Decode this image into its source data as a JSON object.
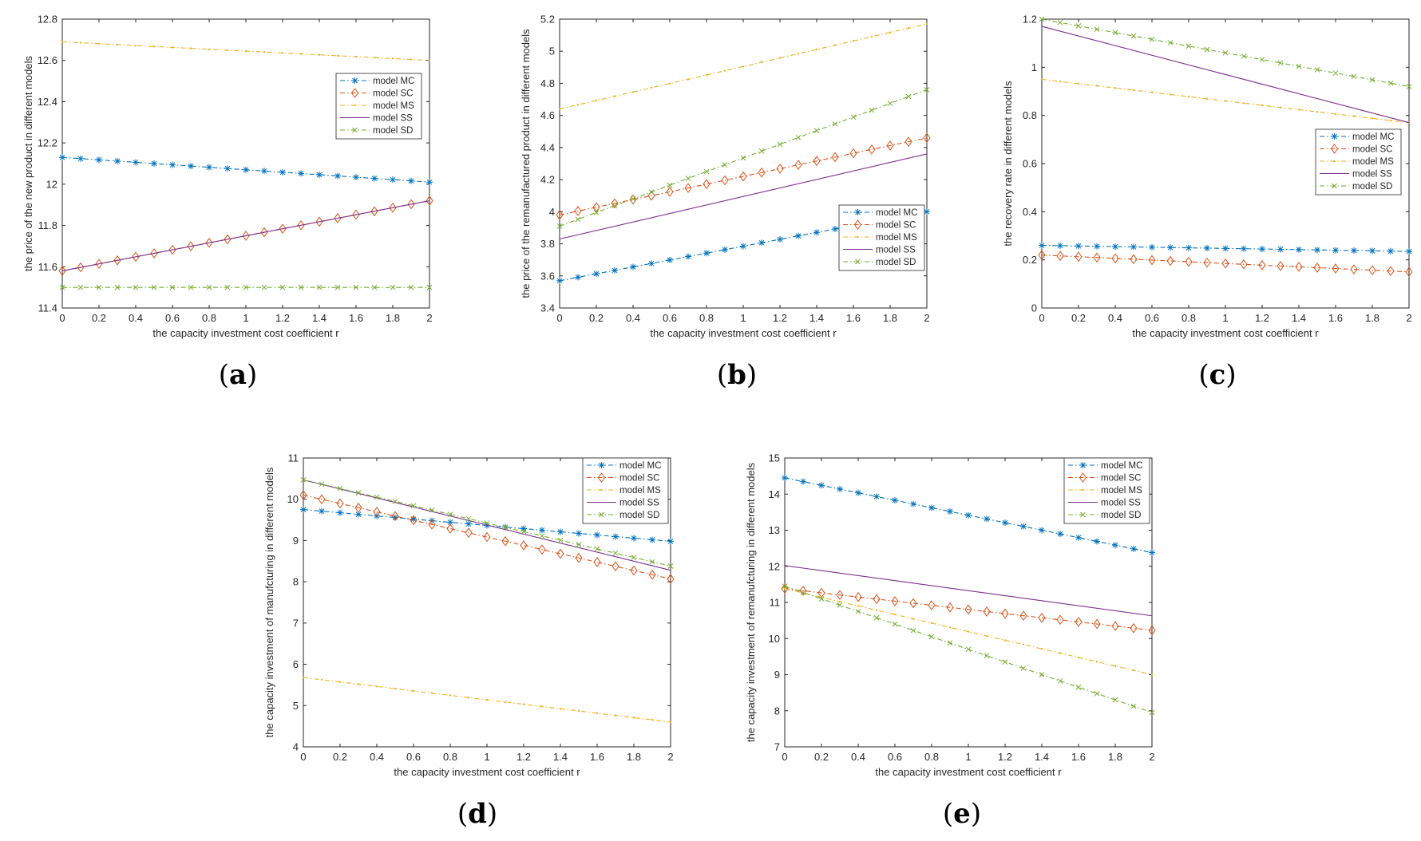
{
  "chart_data": [
    {
      "type": "line",
      "caption_letter": "a",
      "xlabel": "the capacity investment cost coefficient r",
      "ylabel": "the price of the new product in different models",
      "xlim": [
        0,
        2
      ],
      "ylim": [
        11.4,
        12.8
      ],
      "xticks": [
        0,
        0.2,
        0.4,
        0.6,
        0.8,
        1,
        1.2,
        1.4,
        1.6,
        1.8,
        2
      ],
      "xtick_labels": [
        "0",
        "0.2",
        "0.4",
        "0.6",
        "0.8",
        "1",
        "1.2",
        "1.4",
        "1.6",
        "1.8",
        "2"
      ],
      "yticks": [
        11.4,
        11.6,
        11.8,
        12,
        12.2,
        12.4,
        12.6,
        12.8
      ],
      "ytick_labels": [
        "11.4",
        "11.6",
        "11.8",
        "12",
        "12.2",
        "12.4",
        "12.6",
        "12.8"
      ],
      "legend": "inner-top-right",
      "series": [
        {
          "name": "model MC",
          "start": 12.13,
          "end": 12.01,
          "color": "#0072BD",
          "dash": "dashdot",
          "marker": "star"
        },
        {
          "name": "model SC",
          "start": 11.58,
          "end": 11.92,
          "color": "#D95319",
          "dash": "dashdot",
          "marker": "diamond"
        },
        {
          "name": "model MS",
          "start": 12.69,
          "end": 12.6,
          "color": "#EDB120",
          "dash": "dashdot",
          "marker": "dot"
        },
        {
          "name": "model SS",
          "start": 11.58,
          "end": 11.92,
          "color": "#7E2F8E",
          "dash": "solid",
          "marker": "none"
        },
        {
          "name": "model SD",
          "start": 11.5,
          "end": 11.5,
          "color": "#77AC30",
          "dash": "dashdot",
          "marker": "x"
        }
      ]
    },
    {
      "type": "line",
      "caption_letter": "b",
      "xlabel": "the capacity investment cost coefficient r",
      "ylabel": "the price of the remanufactured product in different models",
      "xlim": [
        0,
        2
      ],
      "ylim": [
        3.4,
        5.2
      ],
      "xticks": [
        0,
        0.2,
        0.4,
        0.6,
        0.8,
        1,
        1.2,
        1.4,
        1.6,
        1.8,
        2
      ],
      "xtick_labels": [
        "0",
        "0.2",
        "0.4",
        "0.6",
        "0.8",
        "1",
        "1.2",
        "1.4",
        "1.6",
        "1.8",
        "2"
      ],
      "yticks": [
        3.4,
        3.6,
        3.8,
        4,
        4.2,
        4.4,
        4.6,
        4.8,
        5,
        5.2
      ],
      "ytick_labels": [
        "3.4",
        "3.6",
        "3.8",
        "4",
        "4.2",
        "4.4",
        "4.6",
        "4.8",
        "5",
        "5.2"
      ],
      "legend": "inner-bottom-right",
      "series": [
        {
          "name": "model MC",
          "start": 3.57,
          "end": 4.0,
          "color": "#0072BD",
          "dash": "dashdot",
          "marker": "star"
        },
        {
          "name": "model SC",
          "start": 3.98,
          "end": 4.46,
          "color": "#D95319",
          "dash": "dashdot",
          "marker": "diamond"
        },
        {
          "name": "model MS",
          "start": 4.64,
          "end": 5.17,
          "color": "#EDB120",
          "dash": "dashdot",
          "marker": "dot"
        },
        {
          "name": "model SS",
          "start": 3.83,
          "end": 4.36,
          "color": "#7E2F8E",
          "dash": "solid",
          "marker": "none"
        },
        {
          "name": "model SD",
          "start": 3.91,
          "end": 4.76,
          "color": "#77AC30",
          "dash": "dashdot",
          "marker": "x"
        }
      ]
    },
    {
      "type": "line",
      "caption_letter": "c",
      "xlabel": "the capacity investment cost coefficient r",
      "ylabel": "the recovery rate in different models",
      "xlim": [
        0,
        2
      ],
      "ylim": [
        0,
        1.2
      ],
      "xticks": [
        0,
        0.2,
        0.4,
        0.6,
        0.8,
        1,
        1.2,
        1.4,
        1.6,
        1.8,
        2
      ],
      "xtick_labels": [
        "0",
        "0.2",
        "0.4",
        "0.6",
        "0.8",
        "1",
        "1.2",
        "1.4",
        "1.6",
        "1.8",
        "2"
      ],
      "yticks": [
        0,
        0.2,
        0.4,
        0.6,
        0.8,
        1,
        1.2
      ],
      "ytick_labels": [
        "0",
        "0.2",
        "0.4",
        "0.6",
        "0.8",
        "1",
        "1.2"
      ],
      "legend": "inner-right",
      "series": [
        {
          "name": "model MC",
          "start": 0.26,
          "end": 0.235,
          "color": "#0072BD",
          "dash": "dashdot",
          "marker": "star"
        },
        {
          "name": "model SC",
          "start": 0.22,
          "end": 0.15,
          "color": "#D95319",
          "dash": "dashdot",
          "marker": "diamond"
        },
        {
          "name": "model MS",
          "start": 0.95,
          "end": 0.77,
          "color": "#EDB120",
          "dash": "dashdot",
          "marker": "dot"
        },
        {
          "name": "model SS",
          "start": 1.17,
          "end": 0.77,
          "color": "#7E2F8E",
          "dash": "solid",
          "marker": "none"
        },
        {
          "name": "model SD",
          "start": 1.2,
          "end": 0.92,
          "color": "#77AC30",
          "dash": "dashdot",
          "marker": "x"
        }
      ]
    },
    {
      "type": "line",
      "caption_letter": "d",
      "xlabel": "the capacity investment cost coefficient r",
      "ylabel": "the capacity investment of manufcturing in different models",
      "xlim": [
        0,
        2
      ],
      "ylim": [
        4,
        11
      ],
      "xticks": [
        0,
        0.2,
        0.4,
        0.6,
        0.8,
        1,
        1.2,
        1.4,
        1.6,
        1.8,
        2
      ],
      "xtick_labels": [
        "0",
        "0.2",
        "0.4",
        "0.6",
        "0.8",
        "1",
        "1.2",
        "1.4",
        "1.6",
        "1.8",
        "2"
      ],
      "yticks": [
        4,
        5,
        6,
        7,
        8,
        9,
        10,
        11
      ],
      "ytick_labels": [
        "4",
        "5",
        "6",
        "7",
        "8",
        "9",
        "10",
        "11"
      ],
      "legend": "inner-top-right",
      "series": [
        {
          "name": "model MC",
          "start": 9.75,
          "end": 8.98,
          "color": "#0072BD",
          "dash": "dashdot",
          "marker": "star"
        },
        {
          "name": "model SC",
          "start": 10.1,
          "end": 8.07,
          "color": "#D95319",
          "dash": "dashdot",
          "marker": "diamond"
        },
        {
          "name": "model MS",
          "start": 5.68,
          "end": 4.6,
          "color": "#EDB120",
          "dash": "dashdot",
          "marker": "dot"
        },
        {
          "name": "model SS",
          "start": 10.47,
          "end": 8.28,
          "color": "#7E2F8E",
          "dash": "solid",
          "marker": "none"
        },
        {
          "name": "model SD",
          "start": 10.47,
          "end": 8.38,
          "color": "#77AC30",
          "dash": "dashdot",
          "marker": "x"
        }
      ]
    },
    {
      "type": "line",
      "caption_letter": "e",
      "xlabel": "the capacity investment cost coefficient r",
      "ylabel": "the capacity investment of remanufcturing in different models",
      "xlim": [
        0,
        2
      ],
      "ylim": [
        7,
        15
      ],
      "xticks": [
        0,
        0.2,
        0.4,
        0.6,
        0.8,
        1,
        1.2,
        1.4,
        1.6,
        1.8,
        2
      ],
      "xtick_labels": [
        "0",
        "0.2",
        "0.4",
        "0.6",
        "0.8",
        "1",
        "1.2",
        "1.4",
        "1.6",
        "1.8",
        "2"
      ],
      "yticks": [
        7,
        8,
        9,
        10,
        11,
        12,
        13,
        14,
        15
      ],
      "ytick_labels": [
        "7",
        "8",
        "9",
        "10",
        "11",
        "12",
        "13",
        "14",
        "15"
      ],
      "legend": "inner-top-right",
      "series": [
        {
          "name": "model MC",
          "start": 14.45,
          "end": 12.38,
          "color": "#0072BD",
          "dash": "dashdot",
          "marker": "star"
        },
        {
          "name": "model SC",
          "start": 11.38,
          "end": 10.23,
          "color": "#D95319",
          "dash": "dashdot",
          "marker": "diamond"
        },
        {
          "name": "model MS",
          "start": 11.38,
          "end": 9.0,
          "color": "#EDB120",
          "dash": "dashdot",
          "marker": "dot"
        },
        {
          "name": "model SS",
          "start": 12.02,
          "end": 10.63,
          "color": "#7E2F8E",
          "dash": "solid",
          "marker": "none"
        },
        {
          "name": "model SD",
          "start": 11.45,
          "end": 7.95,
          "color": "#77AC30",
          "dash": "dashdot",
          "marker": "x"
        }
      ]
    }
  ]
}
